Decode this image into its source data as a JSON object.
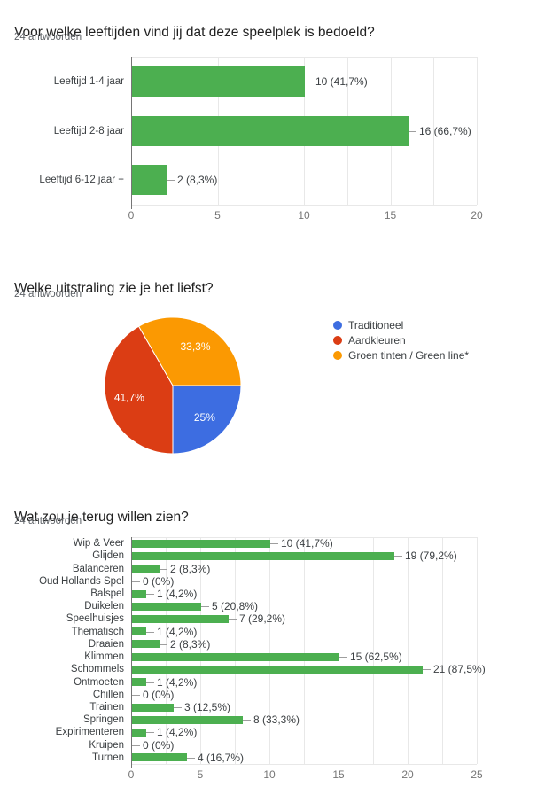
{
  "page": {
    "background": "#ffffff"
  },
  "colors": {
    "bar_green": "#4caf50",
    "pie_blue": "#3d6de1",
    "pie_red": "#db3d14",
    "pie_orange": "#fb9902",
    "grid_line": "#e8e8e8",
    "axis_line": "#757575",
    "leader_line": "#9e9e9e",
    "title_text": "#212121",
    "subtitle_text": "#5f6368",
    "label_text": "#3c4043",
    "tick_text": "#757575",
    "pie_label_text": "#ffffff"
  },
  "chart_data": [
    {
      "type": "bar",
      "orientation": "horizontal",
      "title": "Voor welke leeftijden vind jij dat deze speelplek is bedoeld?",
      "subtitle": "24 antwoorden",
      "categories": [
        "Leeftijd 1-4 jaar",
        "Leeftijd 2-8 jaar",
        "Leeftijd 6-12 jaar +"
      ],
      "values": [
        10,
        16,
        2
      ],
      "value_labels": [
        "10 (41,7%)",
        "16 (66,7%)",
        "2 (8,3%)"
      ],
      "xlabel": "",
      "ylabel": "",
      "xlim": [
        0,
        20
      ],
      "xticks": [
        0,
        5,
        10,
        15,
        20
      ],
      "grid": true,
      "bar_color": "#4caf50"
    },
    {
      "type": "pie",
      "title": "Welke uitstraling zie je het liefst?",
      "subtitle": "24 antwoorden",
      "start_angle_deg": 0,
      "direction": "clockwise",
      "legend_position": "right",
      "slices": [
        {
          "label": "Traditioneel",
          "pct": 25,
          "pct_label": "25%",
          "color": "#3d6de1"
        },
        {
          "label": "Aardkleuren",
          "pct": 41.7,
          "pct_label": "41,7%",
          "color": "#db3d14"
        },
        {
          "label": "Groen tinten / Green line*",
          "pct": 33.3,
          "pct_label": "33,3%",
          "color": "#fb9902"
        }
      ]
    },
    {
      "type": "bar",
      "orientation": "horizontal",
      "title": "Wat zou je terug willen zien?",
      "subtitle": "24 antwoorden",
      "categories": [
        "Wip & Veer",
        "Glijden",
        "Balanceren",
        "Oud Hollands Spel",
        "Balspel",
        "Duikelen",
        "Speelhuisjes",
        "Thematisch",
        "Draaien",
        "Klimmen",
        "Schommels",
        "Ontmoeten",
        "Chillen",
        "Trainen",
        "Springen",
        "Expirimenteren",
        "Kruipen",
        "Turnen"
      ],
      "values": [
        10,
        19,
        2,
        0,
        1,
        5,
        7,
        1,
        2,
        15,
        21,
        1,
        0,
        3,
        8,
        1,
        0,
        4
      ],
      "value_labels": [
        "10 (41,7%)",
        "19 (79,2%)",
        "2 (8,3%)",
        "0 (0%)",
        "1 (4,2%)",
        "5 (20,8%)",
        "7 (29,2%)",
        "1 (4,2%)",
        "2 (8,3%)",
        "15 (62,5%)",
        "21 (87,5%)",
        "1 (4,2%)",
        "0 (0%)",
        "3 (12,5%)",
        "8 (33,3%)",
        "1 (4,2%)",
        "0 (0%)",
        "4 (16,7%)"
      ],
      "xlabel": "",
      "ylabel": "",
      "xlim": [
        0,
        25
      ],
      "xticks": [
        0,
        5,
        10,
        15,
        20,
        25
      ],
      "grid": true,
      "bar_color": "#4caf50"
    }
  ]
}
